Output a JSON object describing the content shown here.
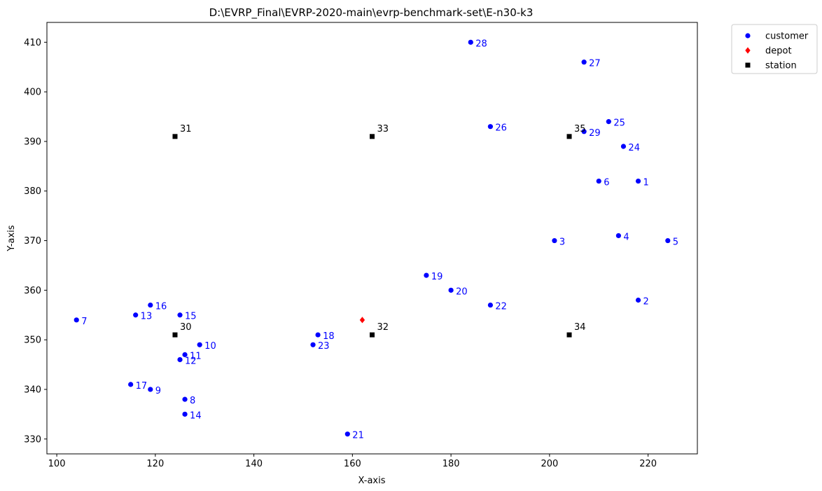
{
  "chart_data": {
    "type": "scatter",
    "title": "D:\\EVRP_Final\\EVRP-2020-main\\evrp-benchmark-set\\E-n30-k3",
    "xlabel": "X-axis",
    "ylabel": "Y-axis",
    "xlim": [
      98,
      230
    ],
    "ylim": [
      327,
      414
    ],
    "xticks": [
      100,
      120,
      140,
      160,
      180,
      200,
      220
    ],
    "yticks": [
      330,
      340,
      350,
      360,
      370,
      380,
      390,
      400,
      410
    ],
    "grid": false,
    "legend_position": "outside-top-right",
    "series": [
      {
        "name": "customer",
        "color": "#0000ff",
        "marker": "circle",
        "points": [
          {
            "label": "1",
            "x": 218,
            "y": 382
          },
          {
            "label": "2",
            "x": 218,
            "y": 358
          },
          {
            "label": "3",
            "x": 201,
            "y": 370
          },
          {
            "label": "4",
            "x": 214,
            "y": 371
          },
          {
            "label": "5",
            "x": 224,
            "y": 370
          },
          {
            "label": "6",
            "x": 210,
            "y": 382
          },
          {
            "label": "7",
            "x": 104,
            "y": 354
          },
          {
            "label": "8",
            "x": 126,
            "y": 338
          },
          {
            "label": "9",
            "x": 119,
            "y": 340
          },
          {
            "label": "10",
            "x": 129,
            "y": 349
          },
          {
            "label": "11",
            "x": 126,
            "y": 347
          },
          {
            "label": "12",
            "x": 125,
            "y": 346
          },
          {
            "label": "13",
            "x": 116,
            "y": 355
          },
          {
            "label": "14",
            "x": 126,
            "y": 335
          },
          {
            "label": "15",
            "x": 125,
            "y": 355
          },
          {
            "label": "16",
            "x": 119,
            "y": 357
          },
          {
            "label": "17",
            "x": 115,
            "y": 341
          },
          {
            "label": "18",
            "x": 153,
            "y": 351
          },
          {
            "label": "19",
            "x": 175,
            "y": 363
          },
          {
            "label": "20",
            "x": 180,
            "y": 360
          },
          {
            "label": "21",
            "x": 159,
            "y": 331
          },
          {
            "label": "22",
            "x": 188,
            "y": 357
          },
          {
            "label": "23",
            "x": 152,
            "y": 349
          },
          {
            "label": "24",
            "x": 215,
            "y": 389
          },
          {
            "label": "25",
            "x": 212,
            "y": 394
          },
          {
            "label": "26",
            "x": 188,
            "y": 393
          },
          {
            "label": "27",
            "x": 207,
            "y": 406
          },
          {
            "label": "28",
            "x": 184,
            "y": 410
          },
          {
            "label": "29",
            "x": 207,
            "y": 392
          }
        ]
      },
      {
        "name": "depot",
        "color": "#ff0000",
        "marker": "diamond",
        "points": [
          {
            "label": "",
            "x": 162,
            "y": 354
          }
        ]
      },
      {
        "name": "station",
        "color": "#000000",
        "marker": "square",
        "points": [
          {
            "label": "30",
            "x": 124,
            "y": 351
          },
          {
            "label": "31",
            "x": 124,
            "y": 391
          },
          {
            "label": "32",
            "x": 164,
            "y": 351
          },
          {
            "label": "33",
            "x": 164,
            "y": 391
          },
          {
            "label": "34",
            "x": 204,
            "y": 351
          },
          {
            "label": "35",
            "x": 204,
            "y": 391
          }
        ]
      }
    ]
  }
}
